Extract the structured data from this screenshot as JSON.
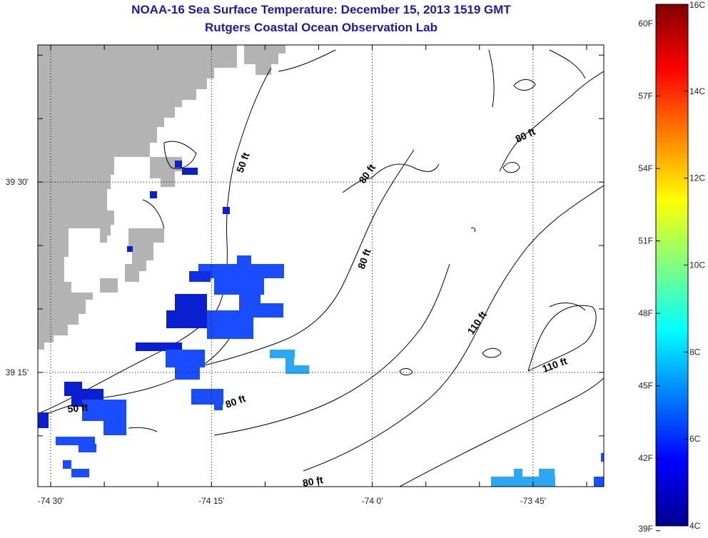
{
  "header": {
    "title": "NOAA-16 Sea Surface Temperature:  December 15, 2013 1519 GMT",
    "subtitle": "Rutgers Coastal Ocean Observation Lab"
  },
  "chart_data": {
    "type": "heatmap",
    "title": "NOAA-16 Sea Surface Temperature:  December 15, 2013 1519 GMT",
    "subtitle": "Rutgers Coastal Ocean Observation Lab",
    "x_axis": {
      "range_deg": [
        -74.52,
        -73.64
      ],
      "ticks": [
        {
          "value": -74.5,
          "label": "-74 30'"
        },
        {
          "value": -74.25,
          "label": "-74 15'"
        },
        {
          "value": -74.0,
          "label": "-74 0'"
        },
        {
          "value": -73.75,
          "label": "-73 45'"
        }
      ]
    },
    "y_axis": {
      "range_deg": [
        39.1,
        39.68
      ],
      "ticks": [
        {
          "value": 39.5,
          "label": "39 30'"
        },
        {
          "value": 39.25,
          "label": "39 15'"
        }
      ]
    },
    "colorbar": {
      "units_left": "F",
      "units_right": "C",
      "range_c": [
        4,
        16
      ],
      "labels_f": [
        "60F",
        "57F",
        "54F",
        "51F",
        "48F",
        "45F",
        "42F",
        "39F"
      ],
      "labels_c": [
        "16C",
        "14C",
        "12C",
        "10C",
        "8C",
        "6C",
        "4C"
      ],
      "values_f": [
        60,
        57,
        54,
        51,
        48,
        45,
        42,
        39
      ],
      "values_c": [
        16,
        14,
        12,
        10,
        8,
        6,
        4
      ]
    },
    "depth_contour_labels": [
      "50 ft",
      "50 ft",
      "80 ft",
      "80 ft",
      "80 ft",
      "80 ft",
      "80 ft",
      "110 ft",
      "110 ft"
    ],
    "land_color": "#b3b3b3",
    "sst_observations": "Isolated patches of 4–7C (39–45F) water offshore of southern New Jersey; remaining ocean area masked (cloud/no data)"
  }
}
